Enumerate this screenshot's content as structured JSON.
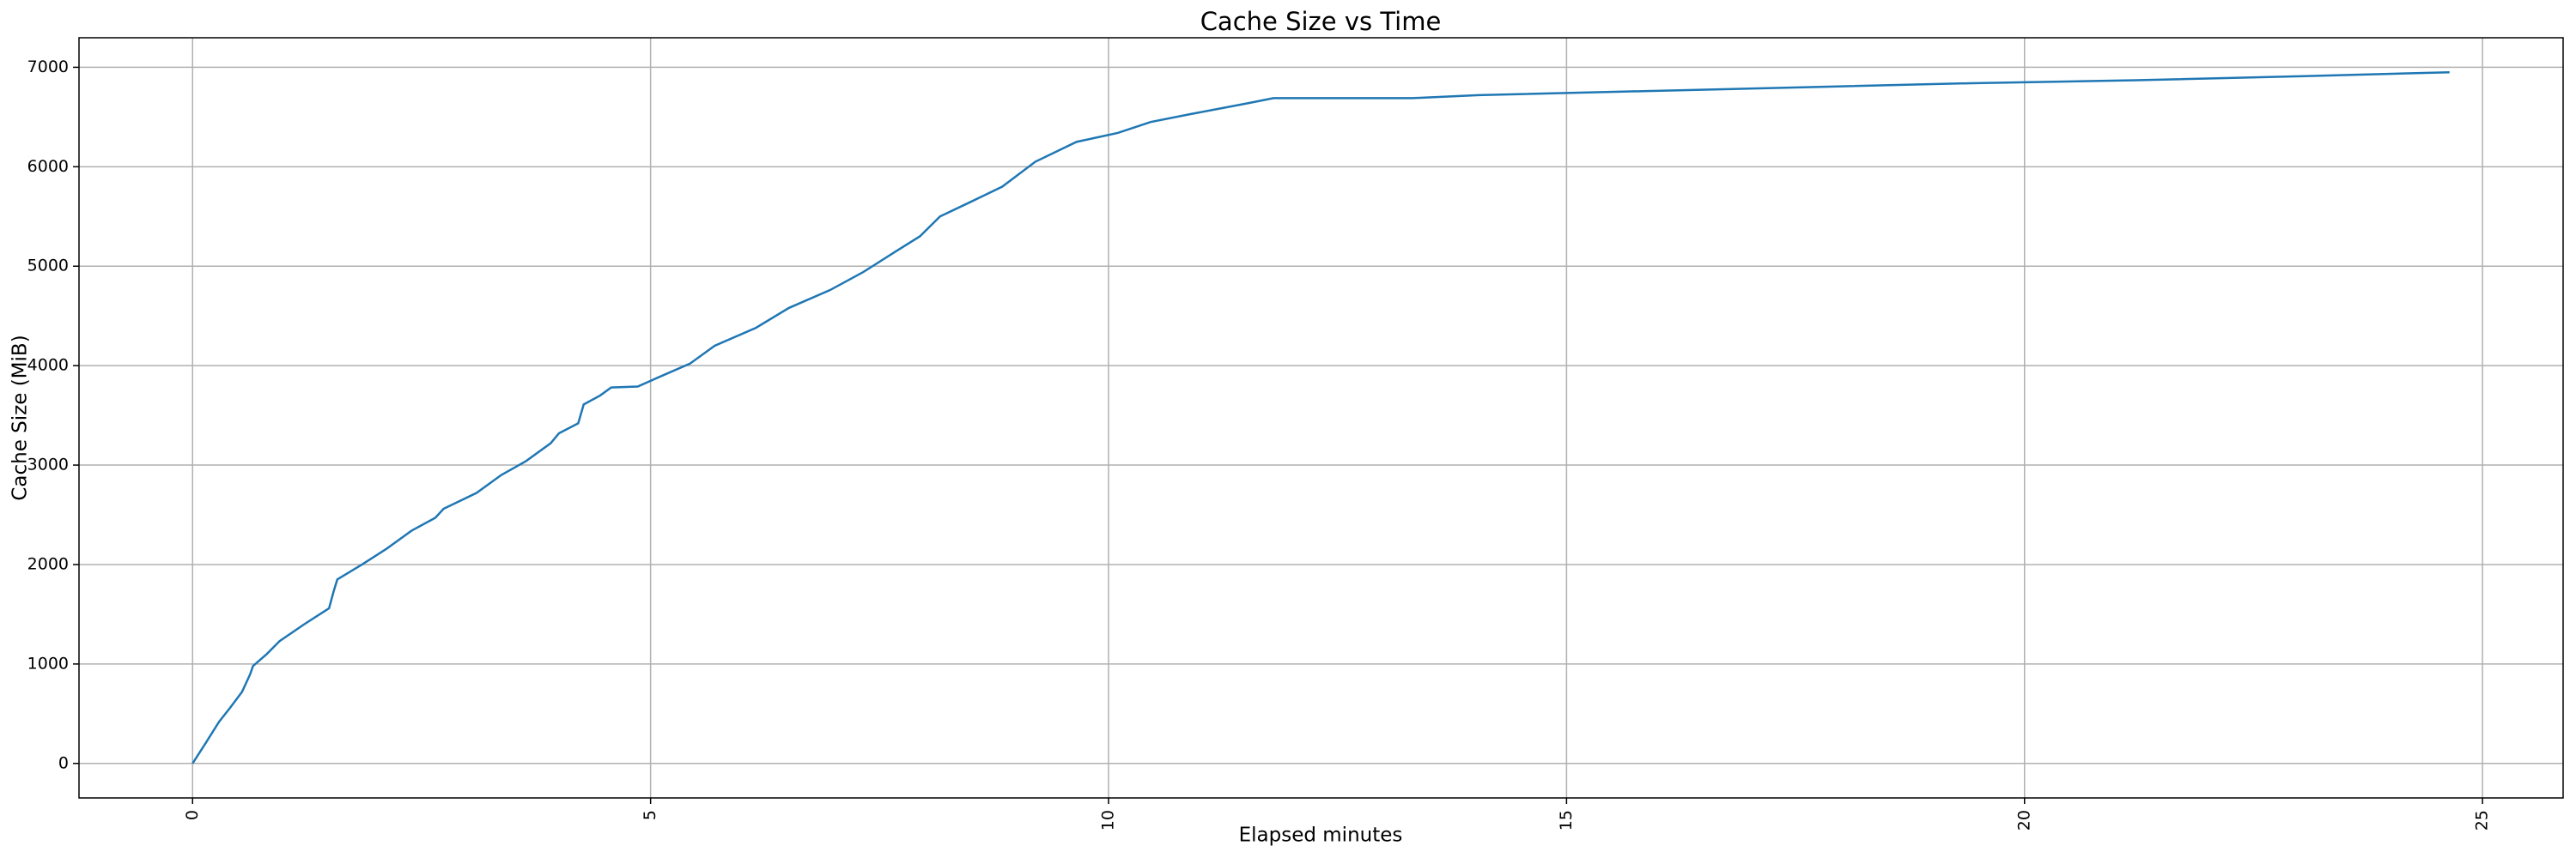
{
  "chart_data": {
    "type": "line",
    "title": "Cache Size vs Time",
    "x_label": "Elapsed minutes",
    "y_label": "Cache Size (MiB)",
    "x": [
      0,
      0.14,
      0.29,
      0.41,
      0.54,
      0.63,
      0.66,
      0.81,
      0.95,
      1.22,
      1.49,
      1.54,
      1.58,
      1.85,
      2.12,
      2.39,
      2.65,
      2.74,
      3.1,
      3.37,
      3.64,
      3.91,
      4.0,
      4.21,
      4.27,
      4.45,
      4.57,
      4.86,
      5.08,
      5.43,
      5.7,
      6.15,
      6.51,
      6.96,
      7.32,
      7.68,
      7.94,
      8.16,
      8.48,
      8.84,
      9.2,
      9.65,
      10.1,
      10.46,
      10.9,
      11.53,
      11.8,
      13.32,
      14.04,
      15.84,
      17.63,
      19.42,
      21.22,
      23.01,
      24.64
    ],
    "series": [
      {
        "name": "Cache Size",
        "color": "#1f77b4",
        "values": [
          0,
          200,
          420,
          560,
          720,
          900,
          980,
          1100,
          1230,
          1400,
          1560,
          1730,
          1850,
          2000,
          2160,
          2340,
          2470,
          2560,
          2720,
          2900,
          3040,
          3220,
          3320,
          3420,
          3610,
          3700,
          3780,
          3790,
          3880,
          4020,
          4200,
          4380,
          4580,
          4760,
          4940,
          5150,
          5300,
          5500,
          5640,
          5800,
          6050,
          6250,
          6340,
          6450,
          6530,
          6640,
          6690,
          6690,
          6720,
          6760,
          6800,
          6840,
          6870,
          6910,
          6950
        ]
      }
    ],
    "xlim": [
      -1.24,
      25.88
    ],
    "xticks": [
      0,
      5,
      10,
      15,
      20,
      25
    ],
    "ylim": [
      -347,
      7297
    ],
    "yticks": [
      0,
      1000,
      2000,
      3000,
      4000,
      5000,
      6000,
      7000
    ],
    "grid": true
  }
}
